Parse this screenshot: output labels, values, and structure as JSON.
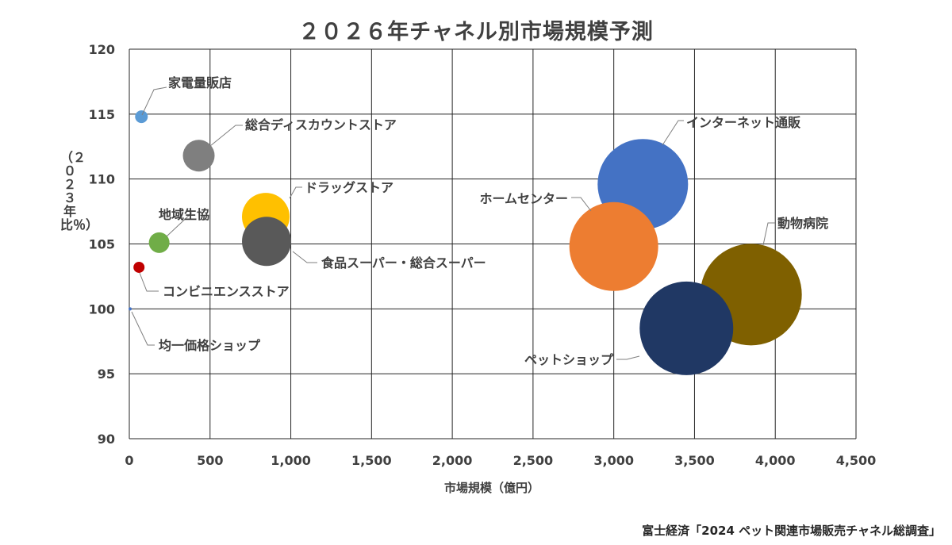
{
  "chart_data": {
    "type": "bubble",
    "title": "２０２６年チャネル別市場規模予測",
    "xlabel": "市場規模（億円）",
    "ylabel": "（２０２３年比％）",
    "xlim": [
      0,
      4500
    ],
    "ylim": [
      90,
      120
    ],
    "x_ticks": [
      "0",
      "500",
      "1,000",
      "1,500",
      "2,000",
      "2,500",
      "3,000",
      "3,500",
      "4,000",
      "4,500"
    ],
    "y_ticks": [
      "90",
      "95",
      "100",
      "105",
      "110",
      "115",
      "120"
    ],
    "grid": true,
    "points": [
      {
        "name": "家電量販店",
        "x": 75,
        "y": 114.8,
        "color": "#5B9BD5"
      },
      {
        "name": "総合ディスカウントストア",
        "x": 430,
        "y": 111.8,
        "color": "#7F7F7F"
      },
      {
        "name": "ドラッグストア",
        "x": 845,
        "y": 107.1,
        "color": "#FFC000"
      },
      {
        "name": "地域生協",
        "x": 185,
        "y": 105.1,
        "color": "#70AD47"
      },
      {
        "name": "食品スーパー・総合スーパー",
        "x": 850,
        "y": 105.2,
        "color": "#595959"
      },
      {
        "name": "コンビニエンスストア",
        "x": 60,
        "y": 103.2,
        "color": "#C00000"
      },
      {
        "name": "均一価格ショップ",
        "x": 5,
        "y": 100.0,
        "color": "#4472C4"
      },
      {
        "name": "インターネット通販",
        "x": 3180,
        "y": 109.6,
        "color": "#4472C4"
      },
      {
        "name": "ホームセンター",
        "x": 3000,
        "y": 104.8,
        "color": "#ED7D31"
      },
      {
        "name": "動物病院",
        "x": 3850,
        "y": 101.1,
        "color": "#7F6000"
      },
      {
        "name": "ペットショップ",
        "x": 3450,
        "y": 98.5,
        "color": "#203864"
      }
    ]
  },
  "source": "富士経済「2024 ペット関連市場販売チャネル総調査」"
}
